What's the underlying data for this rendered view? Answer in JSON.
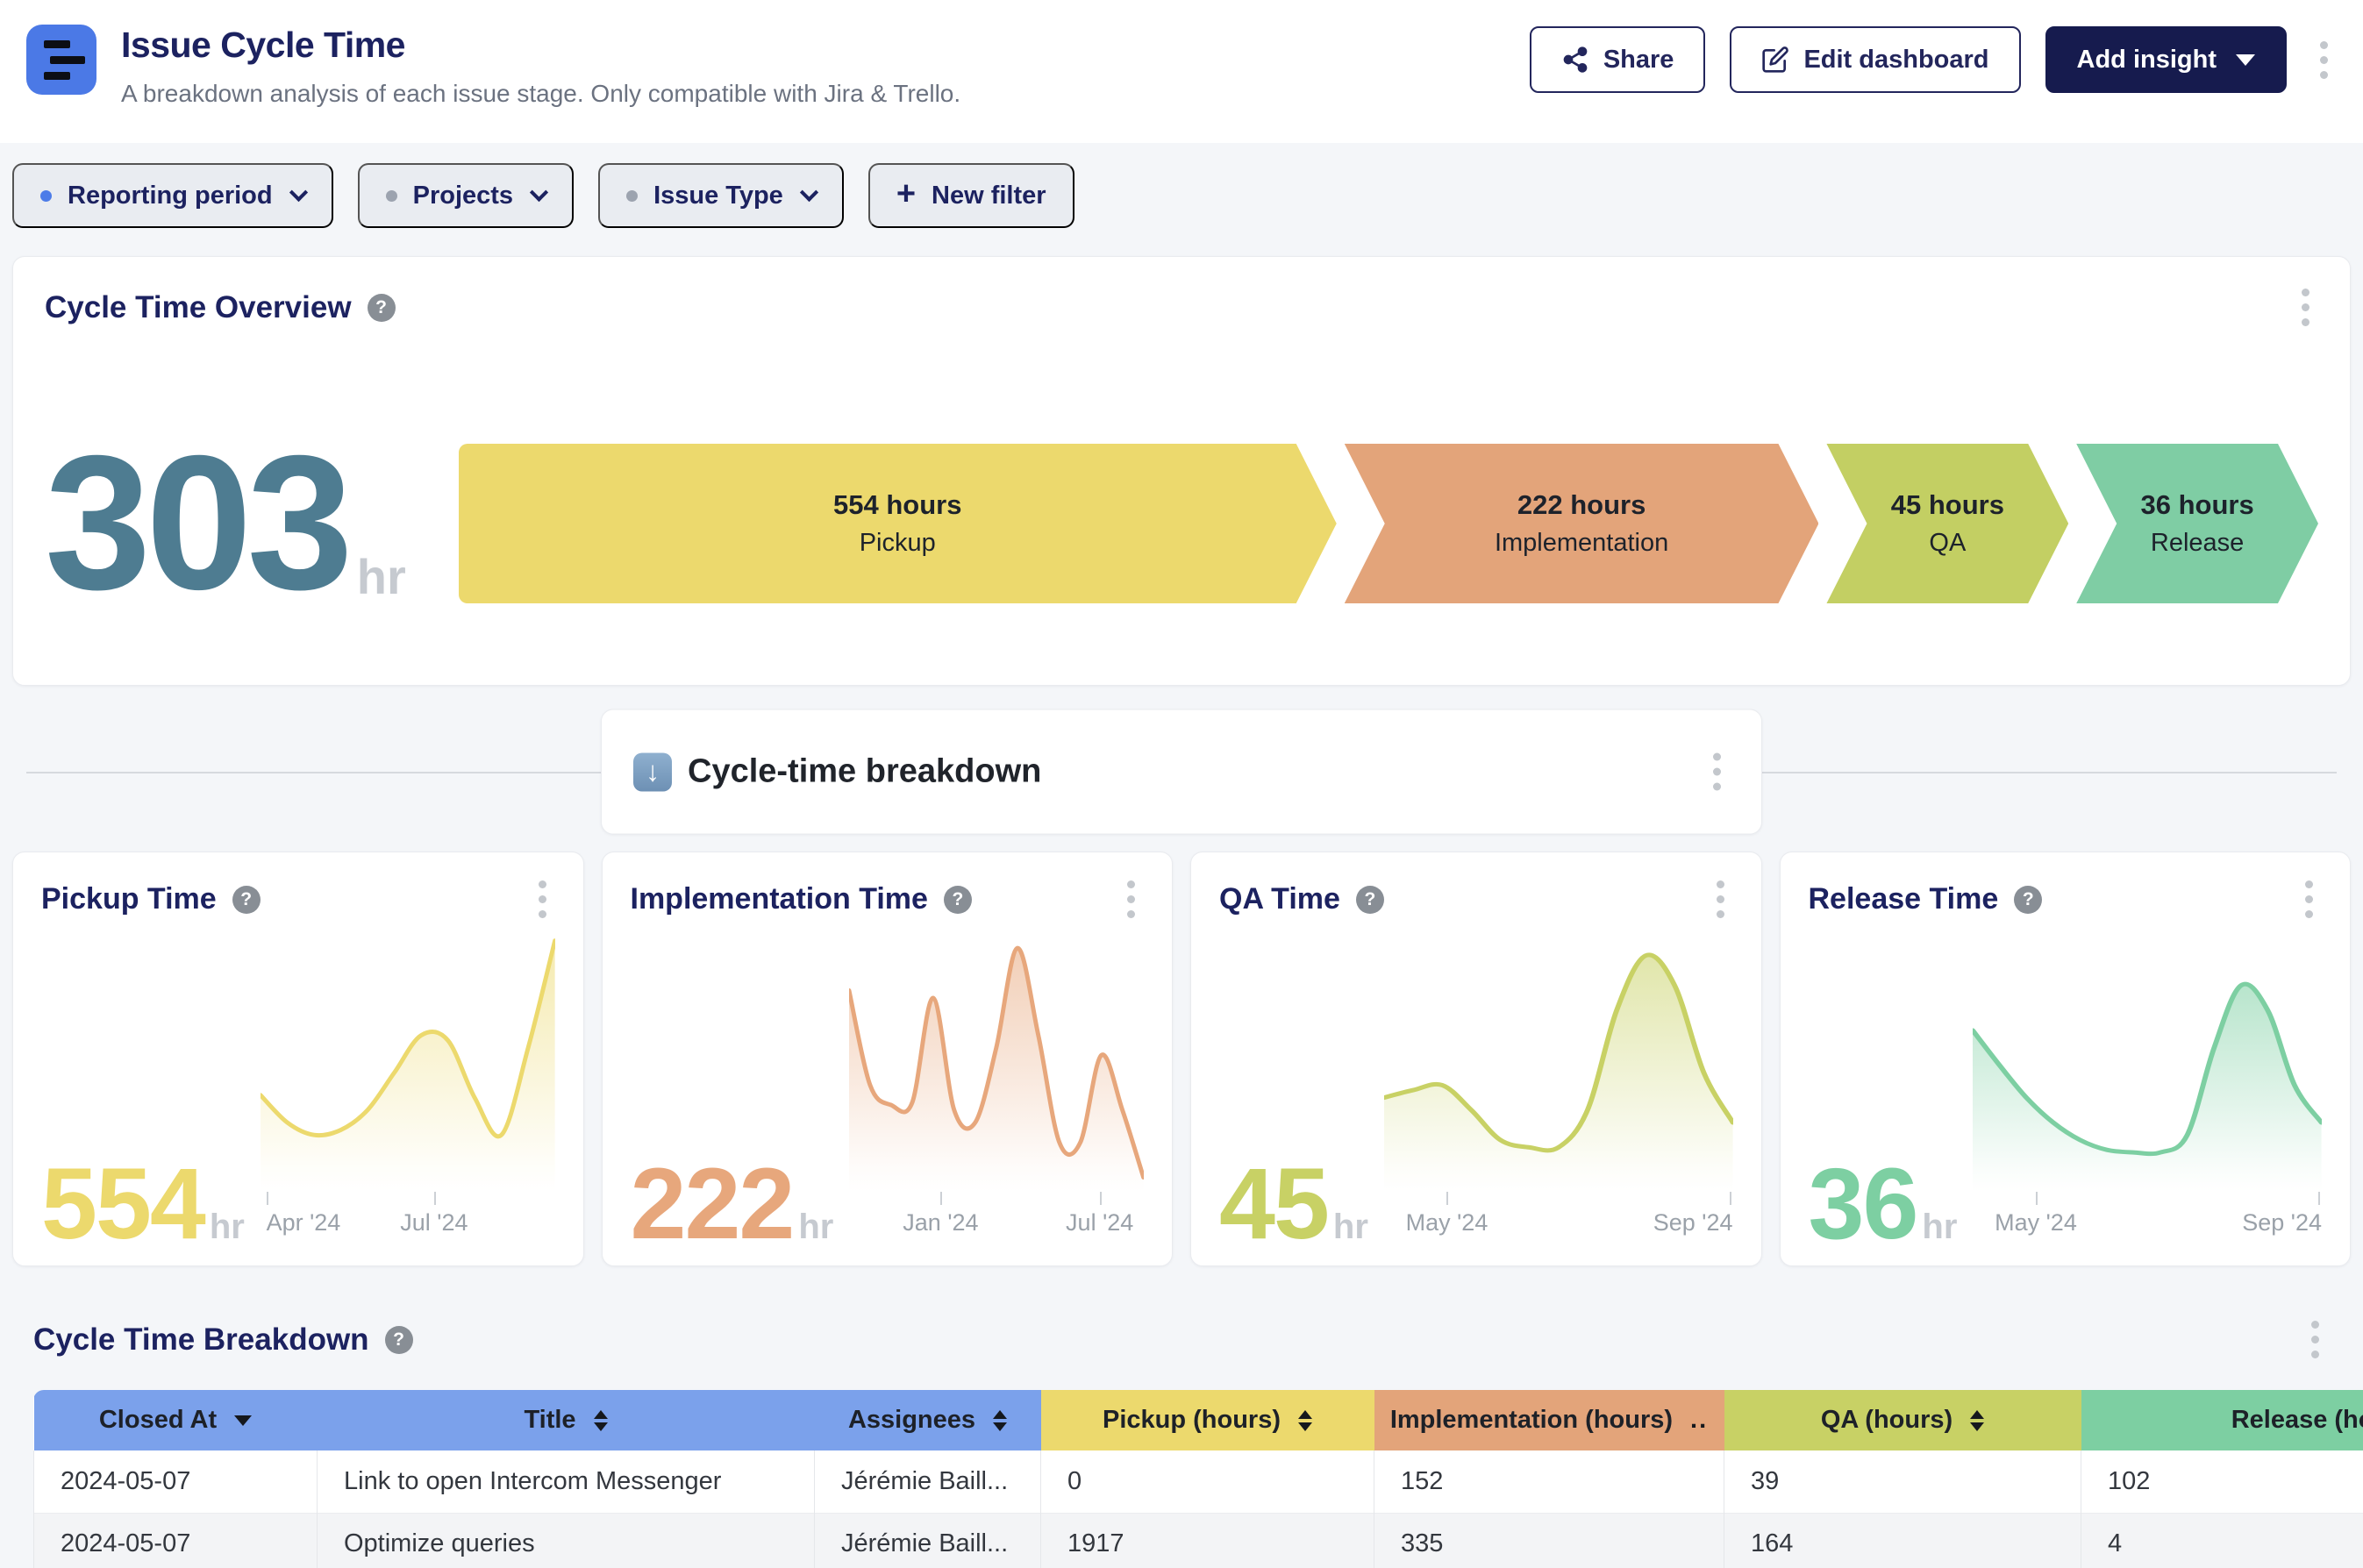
{
  "icons": {
    "help": "?",
    "down_arrow": "↓",
    "plus": "+"
  },
  "header": {
    "title": "Issue Cycle Time",
    "subtitle": "A breakdown analysis of each issue stage. Only compatible with Jira & Trello.",
    "share_label": "Share",
    "edit_label": "Edit dashboard",
    "add_insight_label": "Add insight"
  },
  "filters": {
    "chips": [
      {
        "label": "Reporting period",
        "dot_color": "#4d7ce8"
      },
      {
        "label": "Projects",
        "dot_color": "#9ca3af"
      },
      {
        "label": "Issue Type",
        "dot_color": "#9ca3af"
      }
    ],
    "new_filter_label": "New filter"
  },
  "overview": {
    "title": "Cycle Time Overview",
    "total_value": "303",
    "total_unit": "hr",
    "total_color": "#4e7c91"
  },
  "banner": {
    "title": "Cycle-time breakdown"
  },
  "metric_cards": [
    {
      "title": "Pickup Time",
      "value": "554",
      "unit": "hr",
      "color": "#ecd96d",
      "chart_id": "pickup-spark"
    },
    {
      "title": "Implementation Time",
      "value": "222",
      "unit": "hr",
      "color": "#e7a77c",
      "chart_id": "implementation-spark"
    },
    {
      "title": "QA Time",
      "value": "45",
      "unit": "hr",
      "color": "#c8d165",
      "chart_id": "qa-spark"
    },
    {
      "title": "Release Time",
      "value": "36",
      "unit": "hr",
      "color": "#7dcfa2",
      "chart_id": "release-spark"
    }
  ],
  "table": {
    "title": "Cycle Time Breakdown",
    "sort_dots": "..",
    "columns": [
      {
        "label": "Closed At",
        "bg": "#7ba1eb",
        "sort": "desc"
      },
      {
        "label": "Title",
        "bg": "#7ba1eb",
        "sort": "both"
      },
      {
        "label": "Assignees",
        "bg": "#7ba1eb",
        "sort": "both"
      },
      {
        "label": "Pickup (hours)",
        "bg": "#ecd96d",
        "sort": "both"
      },
      {
        "label": "Implementation (hours)",
        "bg": "#e3a47a",
        "sort": "dots"
      },
      {
        "label": "QA (hours)",
        "bg": "#c8d165",
        "sort": "both"
      },
      {
        "label": "Release (hours)",
        "bg": "#7dcfa2",
        "sort": "none"
      }
    ],
    "rows": [
      [
        "2024-05-07",
        "Link to open Intercom Messenger",
        "Jérémie Baill...",
        "0",
        "152",
        "39",
        "102"
      ],
      [
        "2024-05-07",
        "Optimize queries",
        "Jérémie Baill...",
        "1917",
        "335",
        "164",
        "4"
      ]
    ]
  },
  "chart_data": [
    {
      "id": "cycle-funnel",
      "type": "funnel",
      "title": "Cycle Time Overview",
      "total": {
        "value": 303,
        "unit": "hr"
      },
      "stages": [
        {
          "label": "Pickup",
          "hours": 554,
          "hours_text": "554 hours",
          "color": "#ecd96d"
        },
        {
          "label": "Implementation",
          "hours": 222,
          "hours_text": "222 hours",
          "color": "#e3a47a"
        },
        {
          "label": "QA",
          "hours": 45,
          "hours_text": "45 hours",
          "color": "#c3cf63"
        },
        {
          "label": "Release",
          "hours": 36,
          "hours_text": "36 hours",
          "color": "#7fcda4"
        }
      ]
    },
    {
      "id": "pickup-spark",
      "type": "area",
      "color": "#ecd96d",
      "relative_values": [
        36,
        25,
        20,
        22,
        30,
        45,
        60,
        58,
        35,
        20,
        55,
        98
      ],
      "ticks": [
        {
          "label": "Apr '24",
          "pos": 2,
          "align": "left"
        },
        {
          "label": "Jul '24",
          "pos": 59,
          "align": "center"
        }
      ]
    },
    {
      "id": "implementation-spark",
      "type": "area",
      "color": "#e7a77c",
      "relative_values": [
        78,
        40,
        32,
        33,
        75,
        30,
        25,
        55,
        95,
        60,
        17,
        17,
        52,
        30,
        3
      ],
      "ticks": [
        {
          "label": "Jan '24",
          "pos": 31,
          "align": "center"
        },
        {
          "label": "Jul '24",
          "pos": 85,
          "align": "center"
        }
      ]
    },
    {
      "id": "qa-spark",
      "type": "area",
      "color": "#c8d165",
      "relative_values": [
        35,
        38,
        40,
        30,
        18,
        15,
        15,
        30,
        70,
        92,
        80,
        45,
        25
      ],
      "ticks": [
        {
          "label": "May '24",
          "pos": 18,
          "align": "center"
        },
        {
          "label": "Sep '24",
          "pos": 99,
          "align": "right"
        }
      ]
    },
    {
      "id": "release-spark",
      "type": "area",
      "color": "#7dcfa2",
      "relative_values": [
        62,
        48,
        35,
        25,
        18,
        14,
        13,
        13,
        20,
        55,
        80,
        70,
        40,
        25
      ],
      "ticks": [
        {
          "label": "May '24",
          "pos": 18,
          "align": "center"
        },
        {
          "label": "Sep '24",
          "pos": 99,
          "align": "right"
        }
      ]
    }
  ]
}
